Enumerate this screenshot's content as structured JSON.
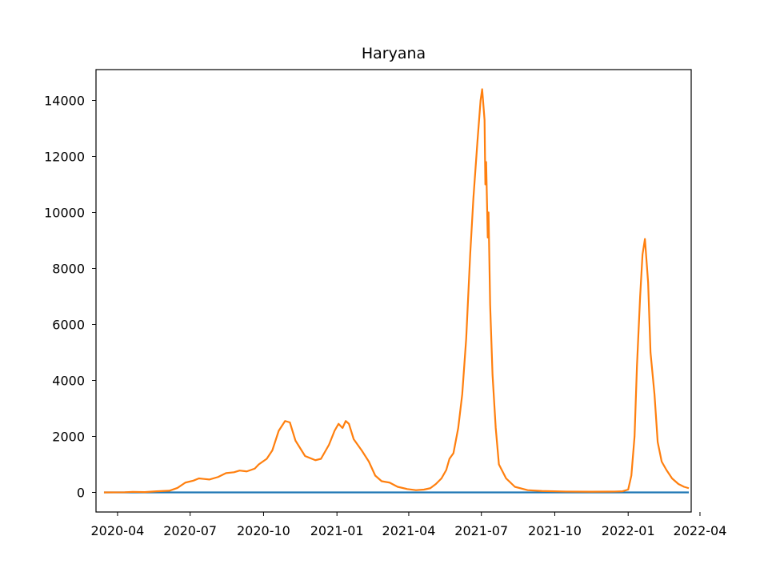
{
  "chart_data": {
    "type": "line",
    "title": "Haryana",
    "xlabel": "",
    "ylabel": "",
    "x_axis_type": "date",
    "xlim": [
      "2020-03-05",
      "2022-03-21"
    ],
    "ylim": [
      -700,
      15100
    ],
    "x_ticks": [
      "2020-04",
      "2020-07",
      "2020-10",
      "2021-01",
      "2021-04",
      "2021-07",
      "2021-10",
      "2022-01",
      "2022-04"
    ],
    "x_tick_labels": [
      "2020-04",
      "2020-07",
      "2020-10",
      "2021-01",
      "2021-04",
      "2021-07",
      "2021-10",
      "2022-01",
      "2022-04"
    ],
    "y_ticks": [
      0,
      2000,
      4000,
      6000,
      8000,
      10000,
      12000,
      14000
    ],
    "y_tick_labels": [
      "0",
      "2000",
      "4000",
      "6000",
      "8000",
      "10000",
      "12000",
      "14000"
    ],
    "grid": false,
    "legend": false,
    "colors": {
      "series_1": "#1f77b4",
      "series_2": "#ff7f0e",
      "axes": "#000000"
    },
    "series": [
      {
        "color": "#1f77b4",
        "points": [
          [
            "2020-03-15",
            0
          ],
          [
            "2022-03-18",
            0
          ]
        ]
      },
      {
        "color": "#ff7f0e",
        "points": [
          [
            "2020-03-15",
            0
          ],
          [
            "2020-04-10",
            5
          ],
          [
            "2020-04-20",
            20
          ],
          [
            "2020-05-05",
            10
          ],
          [
            "2020-05-20",
            40
          ],
          [
            "2020-06-05",
            60
          ],
          [
            "2020-06-15",
            160
          ],
          [
            "2020-06-25",
            350
          ],
          [
            "2020-07-05",
            420
          ],
          [
            "2020-07-12",
            500
          ],
          [
            "2020-07-25",
            460
          ],
          [
            "2020-08-05",
            550
          ],
          [
            "2020-08-15",
            690
          ],
          [
            "2020-08-25",
            720
          ],
          [
            "2020-09-01",
            780
          ],
          [
            "2020-09-10",
            750
          ],
          [
            "2020-09-20",
            850
          ],
          [
            "2020-09-25",
            1000
          ],
          [
            "2020-10-05",
            1200
          ],
          [
            "2020-10-12",
            1500
          ],
          [
            "2020-10-20",
            2200
          ],
          [
            "2020-10-28",
            2550
          ],
          [
            "2020-11-03",
            2500
          ],
          [
            "2020-11-10",
            1850
          ],
          [
            "2020-11-22",
            1300
          ],
          [
            "2020-12-05",
            1150
          ],
          [
            "2020-12-12",
            1200
          ],
          [
            "2020-12-22",
            1700
          ],
          [
            "2020-12-29",
            2200
          ],
          [
            "2021-01-03",
            2450
          ],
          [
            "2021-01-08",
            2300
          ],
          [
            "2021-01-12",
            2550
          ],
          [
            "2021-01-16",
            2450
          ],
          [
            "2021-01-22",
            1900
          ],
          [
            "2021-02-01",
            1500
          ],
          [
            "2021-02-10",
            1100
          ],
          [
            "2021-02-18",
            600
          ],
          [
            "2021-02-26",
            400
          ],
          [
            "2021-03-08",
            350
          ],
          [
            "2021-03-18",
            200
          ],
          [
            "2021-03-30",
            120
          ],
          [
            "2021-04-10",
            80
          ],
          [
            "2021-04-20",
            100
          ],
          [
            "2021-04-28",
            150
          ],
          [
            "2021-05-05",
            300
          ],
          [
            "2021-05-12",
            500
          ],
          [
            "2021-05-18",
            800
          ],
          [
            "2021-05-22",
            1200
          ],
          [
            "2021-05-27",
            1400
          ],
          [
            "2021-06-02",
            2300
          ],
          [
            "2021-06-07",
            3500
          ],
          [
            "2021-06-12",
            5500
          ],
          [
            "2021-06-17",
            8500
          ],
          [
            "2021-06-21",
            10500
          ],
          [
            "2021-06-26",
            12500
          ],
          [
            "2021-06-30",
            14000
          ],
          [
            "2021-07-02",
            14400
          ],
          [
            "2021-07-05",
            13300
          ],
          [
            "2021-07-06",
            11000
          ],
          [
            "2021-07-07",
            11800
          ],
          [
            "2021-07-09",
            9100
          ],
          [
            "2021-07-10",
            10000
          ],
          [
            "2021-07-12",
            6700
          ],
          [
            "2021-07-15",
            4200
          ],
          [
            "2021-07-19",
            2300
          ],
          [
            "2021-07-23",
            1000
          ],
          [
            "2021-08-01",
            500
          ],
          [
            "2021-08-12",
            200
          ],
          [
            "2021-08-28",
            80
          ],
          [
            "2021-09-15",
            50
          ],
          [
            "2021-10-15",
            30
          ],
          [
            "2021-11-15",
            25
          ],
          [
            "2021-12-15",
            30
          ],
          [
            "2021-12-25",
            40
          ],
          [
            "2022-01-01",
            100
          ],
          [
            "2022-01-05",
            600
          ],
          [
            "2022-01-09",
            2000
          ],
          [
            "2022-01-12",
            4500
          ],
          [
            "2022-01-16",
            7000
          ],
          [
            "2022-01-19",
            8500
          ],
          [
            "2022-01-22",
            9050
          ],
          [
            "2022-01-26",
            7500
          ],
          [
            "2022-01-29",
            5000
          ],
          [
            "2022-02-03",
            3500
          ],
          [
            "2022-02-07",
            1800
          ],
          [
            "2022-02-12",
            1100
          ],
          [
            "2022-02-18",
            800
          ],
          [
            "2022-02-25",
            500
          ],
          [
            "2022-03-05",
            300
          ],
          [
            "2022-03-12",
            200
          ],
          [
            "2022-03-18",
            150
          ]
        ]
      }
    ]
  }
}
